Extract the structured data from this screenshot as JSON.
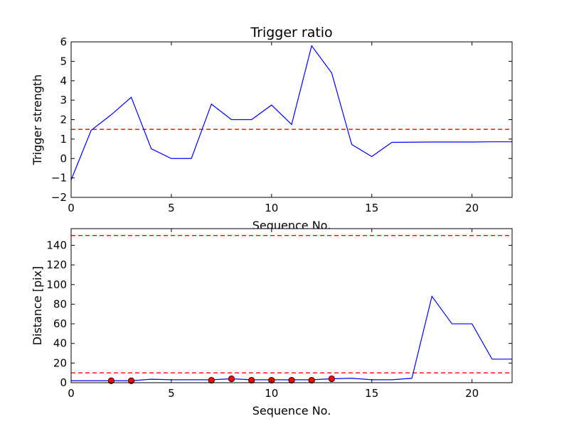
{
  "chart_data": [
    {
      "type": "line",
      "title": "Trigger ratio",
      "xlabel": "Sequence No.",
      "ylabel": "Trigger strength",
      "xlim": [
        0,
        22
      ],
      "ylim": [
        -2,
        6
      ],
      "xticks": [
        0,
        5,
        10,
        15,
        20
      ],
      "yticks": [
        -2,
        -1,
        0,
        1,
        2,
        3,
        4,
        5,
        6
      ],
      "x": [
        0,
        1,
        2,
        3,
        4,
        5,
        6,
        7,
        8,
        9,
        10,
        11,
        12,
        13,
        14,
        15,
        16,
        17,
        18,
        19,
        20,
        21,
        22
      ],
      "series": [
        {
          "values": [
            -1.1,
            1.45,
            2.25,
            3.15,
            0.5,
            0.0,
            0.0,
            2.8,
            2.0,
            2.0,
            2.75,
            1.75,
            5.8,
            4.4,
            0.72,
            0.1,
            0.83,
            0.84,
            0.85,
            0.85,
            0.85,
            0.86,
            0.86
          ],
          "color": "#0000ff"
        }
      ],
      "thresholds": [
        {
          "value": 1.5,
          "color": "#ff0000",
          "style": "dashed"
        }
      ],
      "grid": false
    },
    {
      "type": "line",
      "title": "",
      "xlabel": "Sequence No.",
      "ylabel": "Distance [pix]",
      "xlim": [
        0,
        22
      ],
      "ylim": [
        0,
        157
      ],
      "xticks": [
        0,
        5,
        10,
        15,
        20
      ],
      "yticks": [
        0,
        20,
        40,
        60,
        80,
        100,
        120,
        140
      ],
      "x": [
        0,
        1,
        2,
        3,
        4,
        5,
        6,
        7,
        8,
        9,
        10,
        11,
        12,
        13,
        14,
        15,
        16,
        17,
        18,
        19,
        20,
        21,
        22
      ],
      "series": [
        {
          "values": [
            2,
            2,
            2,
            2,
            3.5,
            3,
            3,
            3,
            4,
            3,
            3,
            3,
            3,
            4,
            4.5,
            3,
            3,
            4.5,
            88,
            60,
            60,
            24,
            24
          ],
          "color": "#0000ff"
        }
      ],
      "markers": {
        "x": [
          2,
          3,
          7,
          8,
          9,
          10,
          11,
          12,
          13
        ],
        "y": [
          2,
          2,
          2.5,
          4,
          2.5,
          2.5,
          2.5,
          2.5,
          4
        ],
        "color": "#ff0000"
      },
      "thresholds": [
        {
          "value": 150,
          "color": "#ff0000",
          "style": "dashed"
        },
        {
          "value": 10,
          "color": "#ff0000",
          "style": "dashed"
        }
      ],
      "grid": false
    }
  ]
}
